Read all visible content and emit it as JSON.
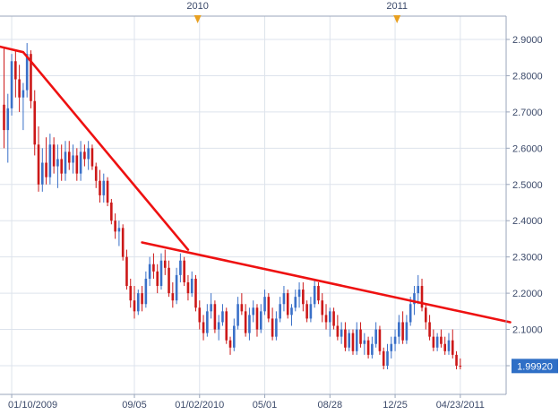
{
  "chart_data": {
    "type": "candlestick",
    "title": "",
    "xlabel": "",
    "ylabel": "",
    "ylim": [
      1.96,
      2.93
    ],
    "grid": true,
    "colors": {
      "up": "#3a70c8",
      "down": "#cc1818",
      "trendline": "#ee1111",
      "last_price_box": "#2f6fc6",
      "year_marker": "#e8a020",
      "grid": "#dde3ec",
      "axis_text": "#3c4a6a"
    },
    "y_ticks": [
      "2.9000",
      "2.8000",
      "2.7000",
      "2.6000",
      "2.5000",
      "2.4000",
      "2.3000",
      "2.2000",
      "2.1000",
      "2.0000"
    ],
    "y_tick_values": [
      2.9,
      2.8,
      2.7,
      2.6,
      2.5,
      2.4,
      2.3,
      2.2,
      2.1,
      2.0
    ],
    "x_ticks": [
      {
        "label": "01/10/2009",
        "index": 2
      },
      {
        "label": "09/05",
        "index": 34
      },
      {
        "label": "01/02/2010",
        "index": 51
      },
      {
        "label": "05/01",
        "index": 68
      },
      {
        "label": "08/28",
        "index": 85
      },
      {
        "label": "12/25",
        "index": 102
      },
      {
        "label": "04/23/2011",
        "index": 119
      }
    ],
    "year_markers": [
      {
        "label": "2010",
        "index": 50.5
      },
      {
        "label": "2011",
        "index": 102.5
      }
    ],
    "last_price": "1.99920",
    "last_price_value": 1.9992,
    "trendlines": [
      {
        "points": [
          [
            -1,
            2.88
          ],
          [
            5,
            2.865
          ],
          [
            48,
            2.32
          ]
        ]
      },
      {
        "points": [
          [
            36,
            2.34
          ],
          [
            132,
            2.12
          ]
        ]
      }
    ],
    "candles": [
      [
        2.72,
        2.88,
        2.6,
        2.65
      ],
      [
        2.65,
        2.75,
        2.56,
        2.71
      ],
      [
        2.71,
        2.86,
        2.69,
        2.84
      ],
      [
        2.84,
        2.87,
        2.74,
        2.79
      ],
      [
        2.79,
        2.83,
        2.7,
        2.74
      ],
      [
        2.74,
        2.78,
        2.65,
        2.76
      ],
      [
        2.76,
        2.89,
        2.74,
        2.86
      ],
      [
        2.86,
        2.87,
        2.71,
        2.73
      ],
      [
        2.73,
        2.76,
        2.58,
        2.61
      ],
      [
        2.61,
        2.66,
        2.48,
        2.5
      ],
      [
        2.5,
        2.6,
        2.48,
        2.56
      ],
      [
        2.56,
        2.63,
        2.5,
        2.52
      ],
      [
        2.52,
        2.64,
        2.5,
        2.61
      ],
      [
        2.61,
        2.63,
        2.53,
        2.55
      ],
      [
        2.55,
        2.61,
        2.49,
        2.57
      ],
      [
        2.57,
        2.61,
        2.51,
        2.53
      ],
      [
        2.53,
        2.62,
        2.51,
        2.59
      ],
      [
        2.59,
        2.62,
        2.54,
        2.56
      ],
      [
        2.56,
        2.61,
        2.53,
        2.58
      ],
      [
        2.58,
        2.6,
        2.51,
        2.53
      ],
      [
        2.53,
        2.62,
        2.51,
        2.59
      ],
      [
        2.59,
        2.61,
        2.55,
        2.57
      ],
      [
        2.57,
        2.62,
        2.54,
        2.6
      ],
      [
        2.6,
        2.61,
        2.54,
        2.55
      ],
      [
        2.55,
        2.56,
        2.49,
        2.51
      ],
      [
        2.51,
        2.54,
        2.45,
        2.47
      ],
      [
        2.47,
        2.53,
        2.45,
        2.51
      ],
      [
        2.51,
        2.52,
        2.44,
        2.45
      ],
      [
        2.45,
        2.46,
        2.39,
        2.4
      ],
      [
        2.4,
        2.42,
        2.35,
        2.37
      ],
      [
        2.37,
        2.4,
        2.33,
        2.38
      ],
      [
        2.38,
        2.39,
        2.29,
        2.3
      ],
      [
        2.3,
        2.32,
        2.21,
        2.22
      ],
      [
        2.22,
        2.24,
        2.16,
        2.18
      ],
      [
        2.18,
        2.22,
        2.13,
        2.15
      ],
      [
        2.15,
        2.21,
        2.14,
        2.2
      ],
      [
        2.2,
        2.22,
        2.15,
        2.17
      ],
      [
        2.17,
        2.26,
        2.16,
        2.24
      ],
      [
        2.24,
        2.3,
        2.22,
        2.28
      ],
      [
        2.28,
        2.31,
        2.24,
        2.26
      ],
      [
        2.26,
        2.28,
        2.2,
        2.22
      ],
      [
        2.22,
        2.31,
        2.21,
        2.29
      ],
      [
        2.29,
        2.32,
        2.25,
        2.27
      ],
      [
        2.27,
        2.29,
        2.19,
        2.2
      ],
      [
        2.2,
        2.23,
        2.16,
        2.18
      ],
      [
        2.18,
        2.27,
        2.17,
        2.25
      ],
      [
        2.25,
        2.31,
        2.23,
        2.29
      ],
      [
        2.29,
        2.3,
        2.22,
        2.23
      ],
      [
        2.23,
        2.25,
        2.18,
        2.2
      ],
      [
        2.2,
        2.26,
        2.19,
        2.24
      ],
      [
        2.24,
        2.25,
        2.15,
        2.16
      ],
      [
        2.16,
        2.18,
        2.1,
        2.12
      ],
      [
        2.12,
        2.14,
        2.07,
        2.09
      ],
      [
        2.09,
        2.17,
        2.08,
        2.15
      ],
      [
        2.15,
        2.2,
        2.13,
        2.17
      ],
      [
        2.17,
        2.18,
        2.09,
        2.1
      ],
      [
        2.1,
        2.14,
        2.07,
        2.12
      ],
      [
        2.12,
        2.17,
        2.11,
        2.15
      ],
      [
        2.15,
        2.16,
        2.06,
        2.07
      ],
      [
        2.07,
        2.08,
        2.03,
        2.05
      ],
      [
        2.05,
        2.13,
        2.04,
        2.11
      ],
      [
        2.11,
        2.19,
        2.1,
        2.17
      ],
      [
        2.17,
        2.2,
        2.14,
        2.15
      ],
      [
        2.15,
        2.17,
        2.08,
        2.09
      ],
      [
        2.09,
        2.16,
        2.07,
        2.14
      ],
      [
        2.14,
        2.18,
        2.12,
        2.16
      ],
      [
        2.16,
        2.17,
        2.08,
        2.1
      ],
      [
        2.1,
        2.17,
        2.09,
        2.15
      ],
      [
        2.15,
        2.21,
        2.14,
        2.19
      ],
      [
        2.19,
        2.2,
        2.12,
        2.13
      ],
      [
        2.13,
        2.16,
        2.07,
        2.08
      ],
      [
        2.08,
        2.15,
        2.07,
        2.13
      ],
      [
        2.13,
        2.19,
        2.12,
        2.17
      ],
      [
        2.17,
        2.22,
        2.15,
        2.2
      ],
      [
        2.2,
        2.21,
        2.13,
        2.14
      ],
      [
        2.14,
        2.17,
        2.11,
        2.16
      ],
      [
        2.16,
        2.21,
        2.15,
        2.19
      ],
      [
        2.19,
        2.23,
        2.16,
        2.21
      ],
      [
        2.21,
        2.23,
        2.15,
        2.17
      ],
      [
        2.17,
        2.18,
        2.12,
        2.13
      ],
      [
        2.13,
        2.19,
        2.12,
        2.17
      ],
      [
        2.17,
        2.24,
        2.16,
        2.22
      ],
      [
        2.22,
        2.23,
        2.17,
        2.18
      ],
      [
        2.18,
        2.2,
        2.12,
        2.14
      ],
      [
        2.14,
        2.17,
        2.1,
        2.12
      ],
      [
        2.12,
        2.16,
        2.08,
        2.15
      ],
      [
        2.15,
        2.16,
        2.1,
        2.11
      ],
      [
        2.11,
        2.14,
        2.07,
        2.08
      ],
      [
        2.08,
        2.12,
        2.06,
        2.1
      ],
      [
        2.1,
        2.12,
        2.04,
        2.05
      ],
      [
        2.05,
        2.1,
        2.04,
        2.09
      ],
      [
        2.09,
        2.1,
        2.03,
        2.04
      ],
      [
        2.04,
        2.12,
        2.03,
        2.1
      ],
      [
        2.1,
        2.12,
        2.05,
        2.06
      ],
      [
        2.06,
        2.09,
        2.03,
        2.07
      ],
      [
        2.07,
        2.08,
        2.02,
        2.03
      ],
      [
        2.03,
        2.08,
        2.02,
        2.06
      ],
      [
        2.06,
        2.12,
        2.05,
        2.1
      ],
      [
        2.1,
        2.11,
        2.03,
        2.04
      ],
      [
        2.04,
        2.05,
        1.99,
        2.0
      ],
      [
        2.0,
        2.06,
        1.99,
        2.04
      ],
      [
        2.04,
        2.08,
        2.02,
        2.06
      ],
      [
        2.06,
        2.1,
        2.04,
        2.08
      ],
      [
        2.08,
        2.14,
        2.06,
        2.12
      ],
      [
        2.12,
        2.15,
        2.06,
        2.07
      ],
      [
        2.07,
        2.14,
        2.06,
        2.12
      ],
      [
        2.12,
        2.19,
        2.11,
        2.17
      ],
      [
        2.17,
        2.22,
        2.14,
        2.2
      ],
      [
        2.2,
        2.25,
        2.17,
        2.22
      ],
      [
        2.22,
        2.24,
        2.15,
        2.16
      ],
      [
        2.16,
        2.17,
        2.1,
        2.12
      ],
      [
        2.12,
        2.14,
        2.07,
        2.08
      ],
      [
        2.08,
        2.1,
        2.04,
        2.05
      ],
      [
        2.05,
        2.09,
        2.04,
        2.08
      ],
      [
        2.08,
        2.1,
        2.05,
        2.06
      ],
      [
        2.06,
        2.08,
        2.03,
        2.04
      ],
      [
        2.04,
        2.09,
        2.03,
        2.07
      ],
      [
        2.07,
        2.1,
        2.02,
        2.03
      ],
      [
        2.03,
        2.04,
        1.99,
        2.0
      ],
      [
        2.0,
        2.02,
        1.99,
        1.9992
      ]
    ]
  }
}
